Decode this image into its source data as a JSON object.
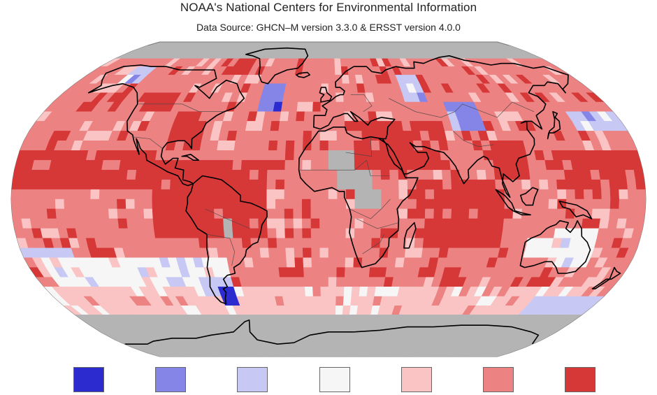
{
  "header": {
    "title": "NOAA's National Centers for Environmental Information",
    "subtitle": "Data Source: GHCN–M version 3.3.0 & ERSST version 4.0.0"
  },
  "map": {
    "projection": "robinson",
    "background_color": "#ffffff",
    "no_data_color": "#b4b4b4",
    "coastline_color": "#000000",
    "border_color": "#555555",
    "grid_resolution_degrees": 5
  },
  "legend": {
    "categories": [
      {
        "color": "#2b2bcf"
      },
      {
        "color": "#8585e8"
      },
      {
        "color": "#c8c8f5"
      },
      {
        "color": "#f6f6f6"
      },
      {
        "color": "#fbc4c4"
      },
      {
        "color": "#ec8282"
      },
      {
        "color": "#d63737"
      }
    ]
  }
}
